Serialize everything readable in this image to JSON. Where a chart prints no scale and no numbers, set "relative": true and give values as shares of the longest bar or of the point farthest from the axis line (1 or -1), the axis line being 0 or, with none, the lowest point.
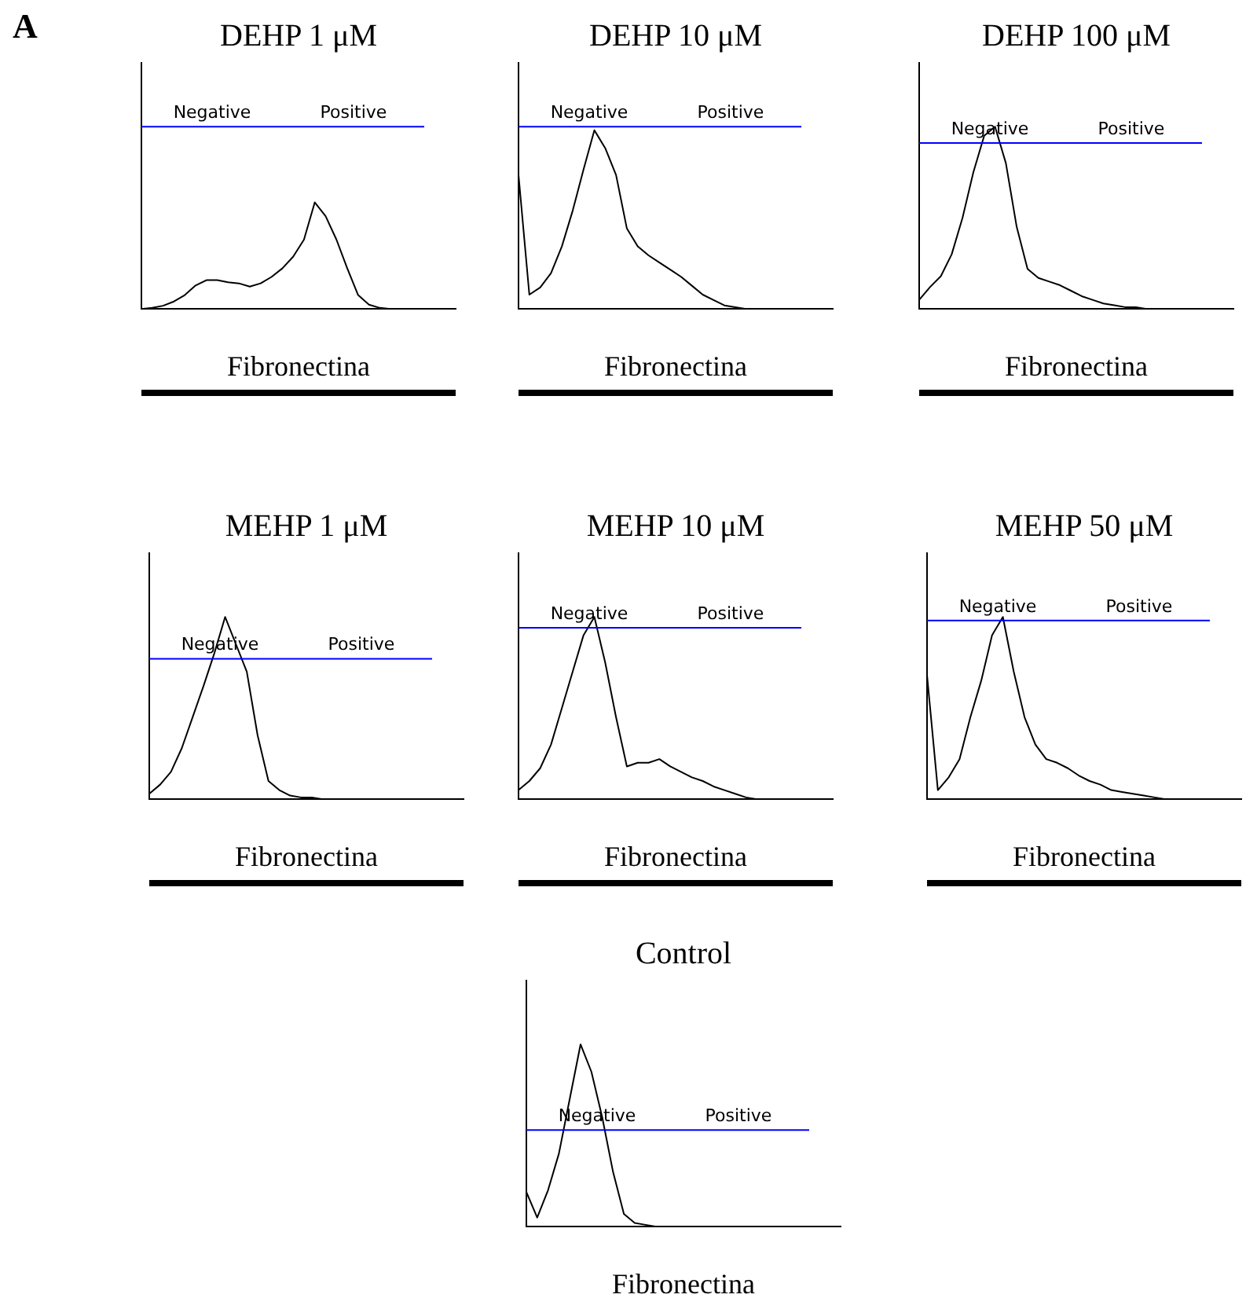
{
  "chart_data": [
    {
      "type": "line",
      "title": "DEHP 1 μM",
      "subtitle": "A",
      "xlabel": "Fibronectina",
      "relative": true,
      "marker": "none",
      "color": "#000000",
      "annotations": [
        "Negative",
        "Positive"
      ],
      "categories": [
        null,
        null,
        null,
        null,
        null,
        null,
        null,
        null,
        null,
        null,
        null,
        null,
        null,
        null,
        null,
        null,
        null,
        null,
        null,
        null,
        null,
        null,
        null,
        null,
        null,
        null,
        null,
        null,
        null,
        null
      ],
      "values": [
        0,
        0.01,
        0.03,
        0.07,
        0.13,
        0.22,
        0.27,
        0.27,
        0.25,
        0.24,
        0.21,
        0.24,
        0.3,
        0.38,
        0.49,
        0.65,
        1,
        0.87,
        0.65,
        0.38,
        0.13,
        0.04,
        0.01,
        0,
        0,
        0,
        0,
        0,
        0,
        0
      ],
      "ref_lines": [
        {
          "axis": "y",
          "value": 1.71,
          "color": "#0000ff"
        }
      ]
    },
    {
      "type": "line",
      "title": "DEHP 10 μM",
      "xlabel": "Fibronectina",
      "relative": true,
      "marker": "none",
      "color": "#000000",
      "annotations": [
        "Negative",
        "Positive"
      ],
      "categories": [
        null,
        null,
        null,
        null,
        null,
        null,
        null,
        null,
        null,
        null,
        null,
        null,
        null,
        null,
        null,
        null,
        null,
        null,
        null,
        null,
        null,
        null,
        null,
        null,
        null,
        null,
        null,
        null,
        null,
        null
      ],
      "values": [
        0.75,
        0.08,
        0.12,
        0.2,
        0.35,
        0.55,
        0.78,
        1,
        0.9,
        0.75,
        0.45,
        0.35,
        0.3,
        0.26,
        0.22,
        0.18,
        0.13,
        0.08,
        0.05,
        0.02,
        0.01,
        0,
        0,
        0,
        0,
        0,
        0,
        0,
        0,
        0
      ],
      "ref_lines": [
        {
          "axis": "y",
          "value": 1.02,
          "color": "#0000ff"
        }
      ]
    },
    {
      "type": "line",
      "title": "DEHP 100 μM",
      "xlabel": "Fibronectina",
      "relative": true,
      "marker": "none",
      "color": "#000000",
      "annotations": [
        "Negative",
        "Positive"
      ],
      "categories": [
        null,
        null,
        null,
        null,
        null,
        null,
        null,
        null,
        null,
        null,
        null,
        null,
        null,
        null,
        null,
        null,
        null,
        null,
        null,
        null,
        null,
        null,
        null,
        null,
        null,
        null,
        null,
        null,
        null,
        null
      ],
      "values": [
        0.05,
        0.12,
        0.18,
        0.3,
        0.5,
        0.75,
        0.95,
        1,
        0.8,
        0.45,
        0.22,
        0.17,
        0.15,
        0.13,
        0.1,
        0.07,
        0.05,
        0.03,
        0.02,
        0.01,
        0.01,
        0,
        0,
        0,
        0,
        0,
        0,
        0,
        0,
        0
      ],
      "ref_lines": [
        {
          "axis": "y",
          "value": 0.91,
          "color": "#0000ff"
        }
      ]
    },
    {
      "type": "line",
      "title": "MEHP 1 μM",
      "xlabel": "Fibronectina",
      "relative": true,
      "marker": "none",
      "color": "#000000",
      "annotations": [
        "Negative",
        "Positive"
      ],
      "categories": [
        null,
        null,
        null,
        null,
        null,
        null,
        null,
        null,
        null,
        null,
        null,
        null,
        null,
        null,
        null,
        null,
        null,
        null,
        null,
        null,
        null,
        null,
        null,
        null,
        null,
        null,
        null,
        null,
        null,
        null
      ],
      "values": [
        0.03,
        0.08,
        0.15,
        0.28,
        0.45,
        0.62,
        0.8,
        1,
        0.85,
        0.7,
        0.35,
        0.1,
        0.05,
        0.02,
        0.01,
        0.01,
        0,
        0,
        0,
        0,
        0,
        0,
        0,
        0,
        0,
        0,
        0,
        0,
        0,
        0
      ],
      "ref_lines": [
        {
          "axis": "y",
          "value": 0.77,
          "color": "#0000ff"
        }
      ]
    },
    {
      "type": "line",
      "title": "MEHP 10 μM",
      "xlabel": "Fibronectina",
      "relative": true,
      "marker": "none",
      "color": "#000000",
      "annotations": [
        "Negative",
        "Positive"
      ],
      "categories": [
        null,
        null,
        null,
        null,
        null,
        null,
        null,
        null,
        null,
        null,
        null,
        null,
        null,
        null,
        null,
        null,
        null,
        null,
        null,
        null,
        null,
        null,
        null,
        null,
        null,
        null,
        null,
        null,
        null,
        null
      ],
      "values": [
        0.05,
        0.1,
        0.17,
        0.3,
        0.5,
        0.7,
        0.9,
        1,
        0.75,
        0.45,
        0.18,
        0.2,
        0.2,
        0.22,
        0.18,
        0.15,
        0.12,
        0.1,
        0.07,
        0.05,
        0.03,
        0.01,
        0,
        0,
        0,
        0,
        0,
        0,
        0,
        0
      ],
      "ref_lines": [
        {
          "axis": "y",
          "value": 0.94,
          "color": "#0000ff"
        }
      ]
    },
    {
      "type": "line",
      "title": "MEHP 50 μM",
      "xlabel": "Fibronectina",
      "relative": true,
      "marker": "none",
      "color": "#000000",
      "annotations": [
        "Negative",
        "Positive"
      ],
      "categories": [
        null,
        null,
        null,
        null,
        null,
        null,
        null,
        null,
        null,
        null,
        null,
        null,
        null,
        null,
        null,
        null,
        null,
        null,
        null,
        null,
        null,
        null,
        null,
        null,
        null,
        null,
        null,
        null,
        null,
        null
      ],
      "values": [
        0.68,
        0.05,
        0.12,
        0.22,
        0.45,
        0.65,
        0.9,
        1,
        0.7,
        0.45,
        0.3,
        0.22,
        0.2,
        0.17,
        0.13,
        0.1,
        0.08,
        0.05,
        0.04,
        0.03,
        0.02,
        0.01,
        0,
        0,
        0,
        0,
        0,
        0,
        0,
        0
      ],
      "ref_lines": [
        {
          "axis": "y",
          "value": 0.98,
          "color": "#0000ff"
        }
      ]
    },
    {
      "type": "line",
      "title": "Control",
      "xlabel": "Fibronectina",
      "relative": true,
      "marker": "none",
      "color": "#000000",
      "annotations": [
        "Negative",
        "Positive"
      ],
      "categories": [
        null,
        null,
        null,
        null,
        null,
        null,
        null,
        null,
        null,
        null,
        null,
        null,
        null,
        null,
        null,
        null,
        null,
        null,
        null,
        null,
        null,
        null,
        null,
        null,
        null,
        null,
        null,
        null,
        null,
        null
      ],
      "values": [
        0.19,
        0.05,
        0.2,
        0.4,
        0.7,
        1,
        0.85,
        0.6,
        0.3,
        0.07,
        0.02,
        0.01,
        0,
        0,
        0,
        0,
        0,
        0,
        0,
        0,
        0,
        0,
        0,
        0,
        0,
        0,
        0,
        0,
        0,
        0
      ],
      "ref_lines": [
        {
          "axis": "y",
          "value": 0.53,
          "color": "#0000ff"
        }
      ]
    }
  ]
}
